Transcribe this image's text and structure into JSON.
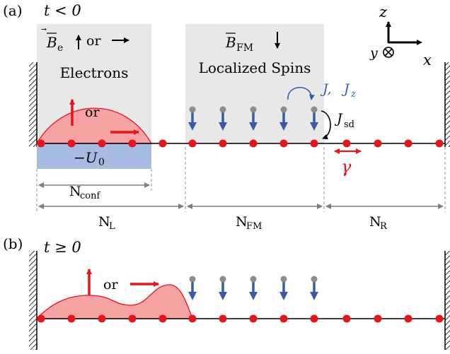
{
  "panel_a": {
    "label": "(a)",
    "time_condition": "t < 0",
    "field_e": {
      "symbol": "B",
      "subscript": "e",
      "or": "or"
    },
    "field_fm": {
      "symbol": "B",
      "subscript": "FM"
    },
    "electrons_label": "Electrons",
    "spins_label": "Localized Spins",
    "or_label": "or",
    "well_label": "−U",
    "well_sub": "0",
    "coupling_J": "J,",
    "coupling_Jz": "J",
    "coupling_Jz_sub": "z",
    "coupling_Jsd": "J",
    "coupling_Jsd_sub": "sd",
    "hopping": "γ",
    "n_conf": "N",
    "n_conf_sub": "conf",
    "n_left": "N",
    "n_left_sub": "L",
    "n_fm": "N",
    "n_fm_sub": "FM",
    "n_right": "N",
    "n_right_sub": "R"
  },
  "panel_b": {
    "label": "(b)",
    "time_condition": "t ≥ 0",
    "or_label": "or"
  },
  "axes": {
    "z": "z",
    "y": "y",
    "x": "x"
  },
  "colors": {
    "site": "#e8141b",
    "spin": "#3a5aa8",
    "spin_head": "#8c8c8c",
    "packet_fill": "#f5a3a3",
    "well_fill": "#a7bce3",
    "region_fill": "#e8e8e8",
    "coupling_text": "#3a5aa8"
  }
}
